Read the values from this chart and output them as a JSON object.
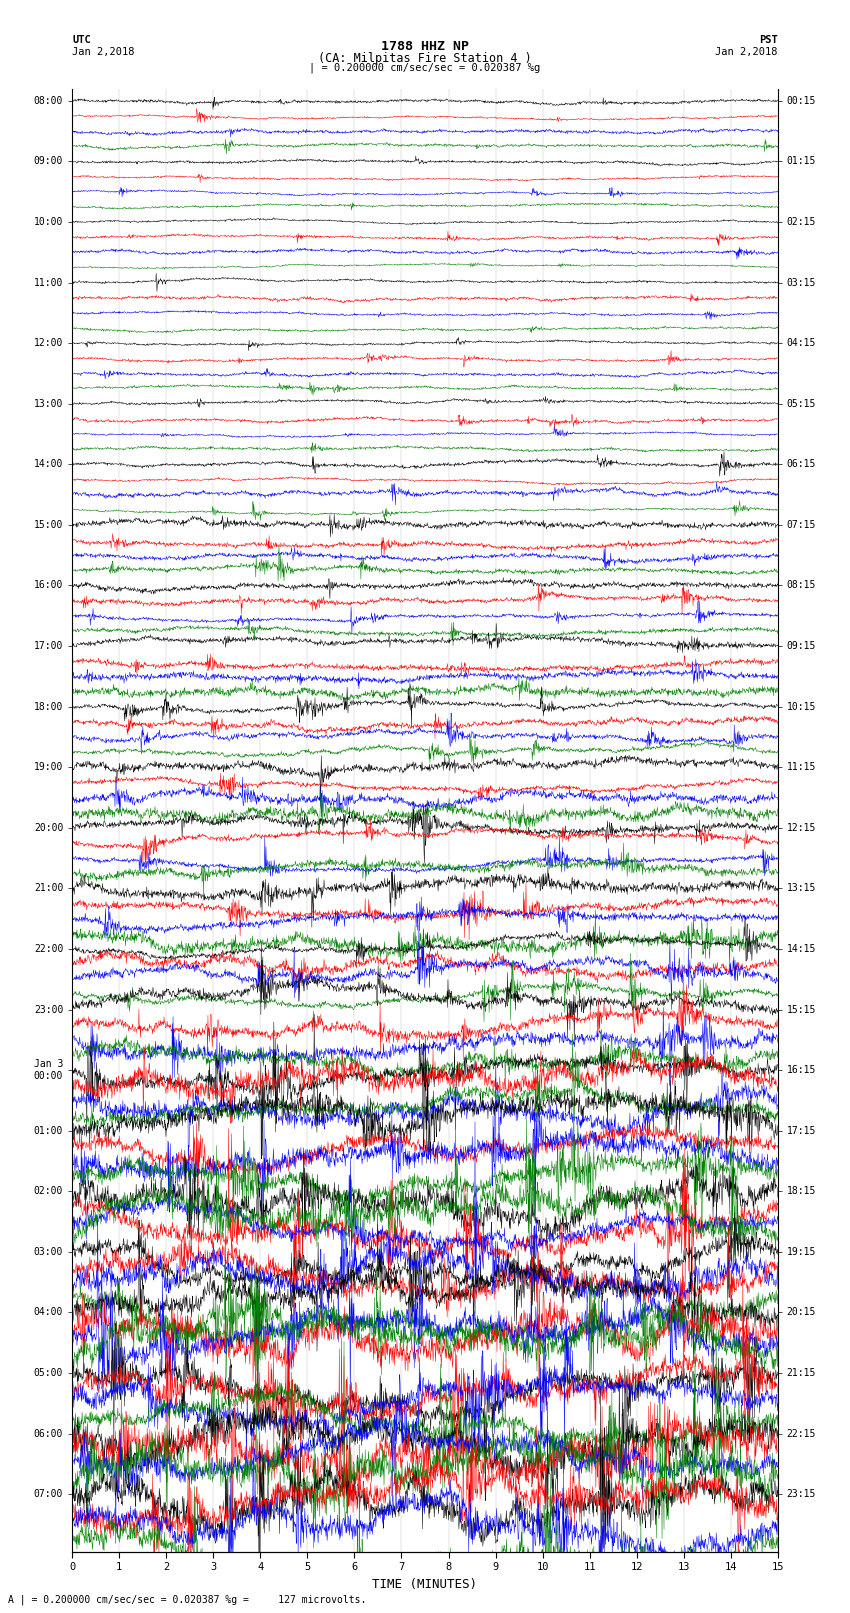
{
  "title_line1": "1788 HHZ NP",
  "title_line2": "(CA: Milpitas Fire Station 4 )",
  "scale_label": "| = 0.200000 cm/sec/sec = 0.020387 %g",
  "left_header": "UTC",
  "left_date": "Jan 2,2018",
  "right_header": "PST",
  "right_date_top": "Jan 2,2018",
  "xlabel": "TIME (MINUTES)",
  "bottom_note": "A | = 0.200000 cm/sec/sec = 0.020387 %g =     127 microvolts.",
  "utc_hour_labels": [
    "08:00",
    "09:00",
    "10:00",
    "11:00",
    "12:00",
    "13:00",
    "14:00",
    "15:00",
    "16:00",
    "17:00",
    "18:00",
    "19:00",
    "20:00",
    "21:00",
    "22:00",
    "23:00",
    "Jan 3\n00:00",
    "01:00",
    "02:00",
    "03:00",
    "04:00",
    "05:00",
    "06:00",
    "07:00"
  ],
  "pst_hour_labels": [
    "00:15",
    "01:15",
    "02:15",
    "03:15",
    "04:15",
    "05:15",
    "06:15",
    "07:15",
    "08:15",
    "09:15",
    "10:15",
    "11:15",
    "12:15",
    "13:15",
    "14:15",
    "15:15",
    "16:15",
    "17:15",
    "18:15",
    "19:15",
    "20:15",
    "21:15",
    "22:15",
    "23:15"
  ],
  "colors": [
    "black",
    "red",
    "blue",
    "green"
  ],
  "n_hours": 24,
  "traces_per_hour": 4,
  "n_points": 1800,
  "background_color": "white",
  "fig_width": 8.5,
  "fig_height": 16.13,
  "dpi": 100
}
